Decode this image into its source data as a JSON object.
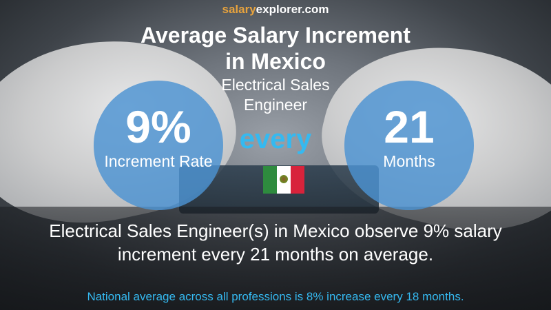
{
  "header": {
    "site_part1": "salary",
    "site_part2": "explorer.com",
    "title_line1": "Average Salary Increment",
    "title_line2": "in Mexico",
    "job_line1": "Electrical Sales",
    "job_line2": "Engineer"
  },
  "left_stat": {
    "value": "9%",
    "label": "Increment Rate"
  },
  "connector": "every",
  "right_stat": {
    "value": "21",
    "label": "Months"
  },
  "flag": {
    "icon": "mexico-flag-icon",
    "colors": [
      "#2e8b3e",
      "#ffffff",
      "#d8233b"
    ]
  },
  "description": {
    "line1": "Electrical Sales Engineer(s) in Mexico observe 9% salary",
    "line2": "increment every 21 months on average."
  },
  "footer": "National average across all professions is 8% increase every 18 months.",
  "colors": {
    "accent_blue": "#35b9f0",
    "circle_blue": "#4c92d2",
    "brand_orange": "#e8a33d"
  }
}
